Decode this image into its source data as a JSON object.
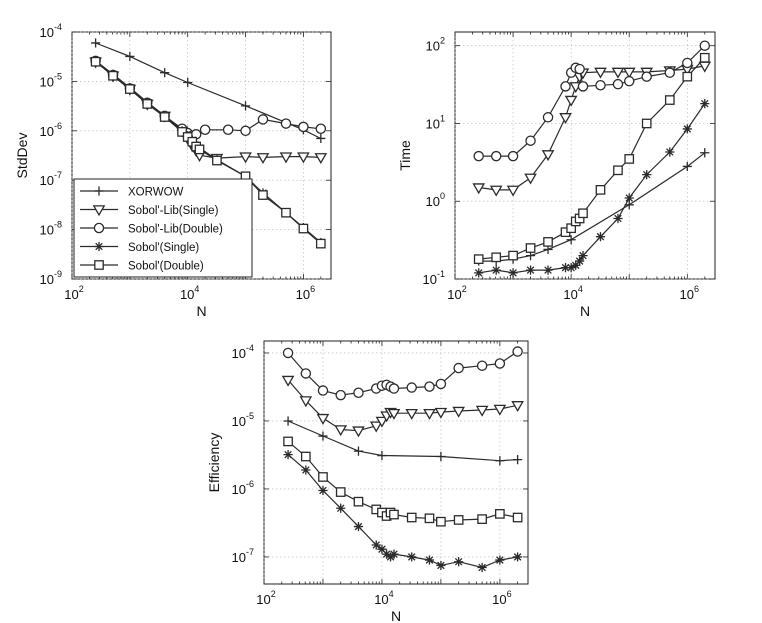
{
  "figure_title": "",
  "chart_data": [
    {
      "id": "stddev",
      "type": "line",
      "title": "",
      "xlabel": "N",
      "ylabel": "StdDev",
      "xscale": "log",
      "yscale": "log",
      "xlim": [
        100,
        3000000
      ],
      "ylim": [
        1e-09,
        0.0001
      ],
      "x_ticks": [
        {
          "base": "10",
          "exp": "2"
        },
        {
          "base": "10",
          "exp": "4"
        },
        {
          "base": "10",
          "exp": "6"
        }
      ],
      "y_ticks": [
        {
          "base": "10",
          "exp": "-9"
        },
        {
          "base": "10",
          "exp": "-8"
        },
        {
          "base": "10",
          "exp": "-7"
        },
        {
          "base": "10",
          "exp": "-6"
        },
        {
          "base": "10",
          "exp": "-5"
        },
        {
          "base": "10",
          "exp": "-4"
        }
      ],
      "grid": true,
      "legend": {
        "placement": "bottom-left",
        "entries": [
          "XORWOW",
          "Sobol'-Lib(Single)",
          "Sobol'-Lib(Double)",
          "Sobol'(Single)",
          "Sobol'(Double)"
        ]
      },
      "series": [
        {
          "name": "XORWOW",
          "marker": "plus",
          "x": [
            256,
            1000,
            4000,
            10000,
            100000,
            1000000,
            2000000
          ],
          "y": [
            6e-05,
            3.2e-05,
            1.5e-05,
            9.5e-06,
            3.2e-06,
            1.05e-06,
            7e-07
          ]
        },
        {
          "name": "Sobol'-Lib(Single)",
          "marker": "triangle-down",
          "x": [
            256,
            512,
            1000,
            2000,
            4000,
            8000,
            10000,
            12000,
            14000,
            16000,
            32000,
            100000,
            200000,
            500000,
            1000000,
            2000000
          ],
          "y": [
            2.5e-05,
            1.3e-05,
            7e-06,
            3.5e-06,
            2e-06,
            1e-06,
            7e-07,
            5e-07,
            4e-07,
            3.2e-07,
            2.8e-07,
            3e-07,
            2.9e-07,
            3e-07,
            3e-07,
            2.9e-07
          ]
        },
        {
          "name": "Sobol'-Lib(Double)",
          "marker": "circle",
          "x": [
            256,
            512,
            1000,
            2000,
            4000,
            8000,
            10000,
            12000,
            14000,
            20000,
            50000,
            100000,
            200000,
            500000,
            1000000,
            2000000
          ],
          "y": [
            2.6e-05,
            1.35e-05,
            7.2e-06,
            3.7e-06,
            2e-06,
            1.1e-06,
            9e-07,
            8e-07,
            8.5e-07,
            1.05e-06,
            1.05e-06,
            1e-06,
            1.7e-06,
            1.4e-06,
            1.2e-06,
            1.1e-06
          ]
        },
        {
          "name": "Sobol'(Single)",
          "marker": "asterisk",
          "x": [
            256,
            512,
            1000,
            2000,
            4000,
            8000,
            10000,
            12000,
            14000,
            16000,
            32000,
            100000,
            200000,
            500000,
            1000000,
            2000000
          ],
          "y": [
            2.6e-05,
            1.4e-05,
            7.5e-06,
            3.8e-06,
            2e-06,
            1e-06,
            8e-07,
            6.5e-07,
            5e-07,
            4.5e-07,
            2.6e-07,
            1.2e-07,
            5.5e-08,
            2.2e-08,
            1.1e-08,
            5.5e-09
          ]
        },
        {
          "name": "Sobol'(Double)",
          "marker": "square",
          "x": [
            256,
            512,
            1000,
            2000,
            4000,
            8000,
            10000,
            12000,
            14000,
            16000,
            32000,
            100000,
            200000,
            500000,
            1000000,
            2000000
          ],
          "y": [
            2.5e-05,
            1.3e-05,
            7e-06,
            3.5e-06,
            1.9e-06,
            9.5e-07,
            7.5e-07,
            6e-07,
            4.8e-07,
            4.2e-07,
            2.5e-07,
            1.2e-07,
            5e-08,
            2.2e-08,
            1.05e-08,
            5.2e-09
          ]
        }
      ]
    },
    {
      "id": "time",
      "type": "line",
      "title": "",
      "xlabel": "N",
      "ylabel": "Time",
      "xscale": "log",
      "yscale": "log",
      "xlim": [
        100,
        3000000
      ],
      "ylim": [
        0.1,
        150
      ],
      "x_ticks": [
        {
          "base": "10",
          "exp": "2"
        },
        {
          "base": "10",
          "exp": "4"
        },
        {
          "base": "10",
          "exp": "6"
        }
      ],
      "y_ticks": [
        {
          "base": "10",
          "exp": "-1"
        },
        {
          "base": "10",
          "exp": "0"
        },
        {
          "base": "10",
          "exp": "1"
        },
        {
          "base": "10",
          "exp": "2"
        }
      ],
      "grid": true,
      "series": [
        {
          "name": "XORWOW",
          "marker": "plus",
          "x": [
            256,
            512,
            1000,
            2000,
            4000,
            10000,
            100000,
            1000000,
            2000000
          ],
          "y": [
            0.17,
            0.17,
            0.18,
            0.2,
            0.24,
            0.32,
            0.9,
            2.8,
            4.2
          ]
        },
        {
          "name": "Sobol'-Lib(Single)",
          "marker": "triangle-down",
          "x": [
            256,
            512,
            1000,
            2000,
            4000,
            8000,
            10000,
            12000,
            14000,
            16000,
            32000,
            64000,
            100000,
            200000,
            500000,
            1000000,
            2000000
          ],
          "y": [
            1.5,
            1.4,
            1.4,
            2,
            4,
            12,
            20,
            30,
            40,
            45,
            46,
            46,
            46,
            46,
            48,
            50,
            55
          ]
        },
        {
          "name": "Sobol'-Lib(Double)",
          "marker": "circle",
          "x": [
            256,
            512,
            1000,
            2000,
            4000,
            8000,
            10000,
            12000,
            14000,
            16000,
            32000,
            64000,
            100000,
            200000,
            500000,
            1000000,
            2000000
          ],
          "y": [
            3.8,
            3.8,
            3.8,
            6,
            12,
            30,
            45,
            52,
            50,
            30,
            31,
            32,
            35,
            40,
            45,
            60,
            100
          ]
        },
        {
          "name": "Sobol'(Single)",
          "marker": "asterisk",
          "x": [
            256,
            512,
            1000,
            2000,
            4000,
            8000,
            10000,
            12000,
            14000,
            16000,
            32000,
            64000,
            100000,
            200000,
            500000,
            1000000,
            2000000
          ],
          "y": [
            0.12,
            0.13,
            0.12,
            0.13,
            0.13,
            0.14,
            0.14,
            0.15,
            0.17,
            0.2,
            0.35,
            0.6,
            1.1,
            2.2,
            4.3,
            8.5,
            18
          ]
        },
        {
          "name": "Sobol'(Double)",
          "marker": "square",
          "x": [
            256,
            512,
            1000,
            2000,
            4000,
            8000,
            10000,
            12000,
            14000,
            16000,
            32000,
            64000,
            100000,
            200000,
            500000,
            1000000,
            2000000
          ],
          "y": [
            0.18,
            0.19,
            0.2,
            0.25,
            0.3,
            0.4,
            0.45,
            0.55,
            0.6,
            0.7,
            1.4,
            2.5,
            3.5,
            10,
            20,
            40,
            70
          ]
        }
      ]
    },
    {
      "id": "efficiency",
      "type": "line",
      "title": "",
      "xlabel": "N",
      "ylabel": "Efficiency",
      "xscale": "log",
      "yscale": "log",
      "xlim": [
        100,
        3000000
      ],
      "ylim": [
        4e-08,
        0.00015
      ],
      "x_ticks": [
        {
          "base": "10",
          "exp": "2"
        },
        {
          "base": "10",
          "exp": "4"
        },
        {
          "base": "10",
          "exp": "6"
        }
      ],
      "y_ticks": [
        {
          "base": "10",
          "exp": "-7"
        },
        {
          "base": "10",
          "exp": "-6"
        },
        {
          "base": "10",
          "exp": "-5"
        },
        {
          "base": "10",
          "exp": "-4"
        }
      ],
      "grid": true,
      "series": [
        {
          "name": "XORWOW",
          "marker": "plus",
          "x": [
            256,
            1000,
            4000,
            10000,
            100000,
            1000000,
            2000000
          ],
          "y": [
            1e-05,
            6e-06,
            3.6e-06,
            3.1e-06,
            3e-06,
            2.6e-06,
            2.7e-06
          ]
        },
        {
          "name": "Sobol'-Lib(Single)",
          "marker": "triangle-down",
          "x": [
            256,
            512,
            1000,
            2000,
            4000,
            8000,
            10000,
            12000,
            14000,
            16000,
            32000,
            64000,
            100000,
            200000,
            500000,
            1000000,
            2000000
          ],
          "y": [
            4e-05,
            2e-05,
            1.1e-05,
            7.5e-06,
            7.2e-06,
            8.5e-06,
            1e-05,
            1.2e-05,
            1.35e-05,
            1.3e-05,
            1.3e-05,
            1.3e-05,
            1.35e-05,
            1.4e-05,
            1.45e-05,
            1.5e-05,
            1.7e-05
          ]
        },
        {
          "name": "Sobol'-Lib(Double)",
          "marker": "circle",
          "x": [
            256,
            512,
            1000,
            2000,
            4000,
            8000,
            10000,
            12000,
            14000,
            16000,
            32000,
            64000,
            100000,
            200000,
            500000,
            1000000,
            2000000
          ],
          "y": [
            0.0001,
            5e-05,
            2.8e-05,
            2.4e-05,
            2.6e-05,
            3e-05,
            3.3e-05,
            3.4e-05,
            3.2e-05,
            3e-05,
            3.1e-05,
            3.2e-05,
            3.5e-05,
            6e-05,
            6.5e-05,
            7e-05,
            0.000105
          ]
        },
        {
          "name": "Sobol'(Single)",
          "marker": "asterisk",
          "x": [
            256,
            512,
            1000,
            2000,
            4000,
            8000,
            10000,
            12000,
            14000,
            16000,
            32000,
            64000,
            100000,
            200000,
            500000,
            1000000,
            2000000
          ],
          "y": [
            3.2e-06,
            1.9e-06,
            9.5e-07,
            5.2e-07,
            2.8e-07,
            1.5e-07,
            1.3e-07,
            1.1e-07,
            1e-07,
            1.1e-07,
            1e-07,
            9e-08,
            7.5e-08,
            8.5e-08,
            7e-08,
            9e-08,
            1e-07
          ]
        },
        {
          "name": "Sobol'(Double)",
          "marker": "square",
          "x": [
            256,
            512,
            1000,
            2000,
            4000,
            8000,
            10000,
            12000,
            14000,
            16000,
            32000,
            64000,
            100000,
            200000,
            500000,
            1000000,
            2000000
          ],
          "y": [
            5e-06,
            3e-06,
            1.5e-06,
            9e-07,
            6.5e-07,
            5e-07,
            4.5e-07,
            4e-07,
            4.5e-07,
            4.2e-07,
            3.8e-07,
            3.7e-07,
            3.3e-07,
            3.5e-07,
            3.6e-07,
            4.3e-07,
            3.8e-07
          ]
        }
      ]
    }
  ]
}
